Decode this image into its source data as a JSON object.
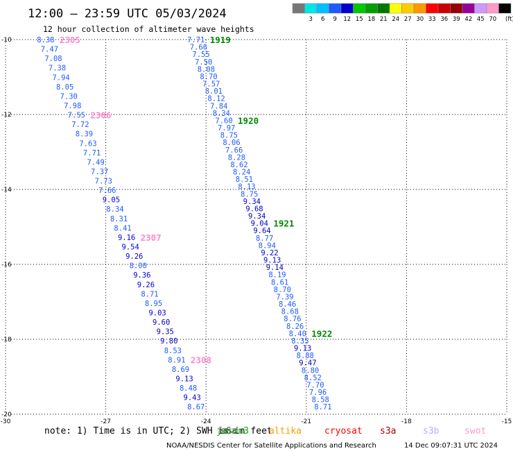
{
  "header": {
    "title": "12:00 — 23:59 UTC 05/03/2024",
    "subtitle": "12 hour collection of altimeter wave heights"
  },
  "color_scale": {
    "unit": "(ft)",
    "bins": [
      {
        "label": "",
        "color": "#777777"
      },
      {
        "label": "3",
        "color": "#00e6e6"
      },
      {
        "label": "6",
        "color": "#00bfff"
      },
      {
        "label": "9",
        "color": "#1e5aff"
      },
      {
        "label": "12",
        "color": "#0000cd"
      },
      {
        "label": "15",
        "color": "#00c800"
      },
      {
        "label": "18",
        "color": "#00a000"
      },
      {
        "label": "21",
        "color": "#007800"
      },
      {
        "label": "24",
        "color": "#ffff00"
      },
      {
        "label": "27",
        "color": "#ffcc00"
      },
      {
        "label": "30",
        "color": "#ff9900"
      },
      {
        "label": "33",
        "color": "#ff0000"
      },
      {
        "label": "36",
        "color": "#cc0000"
      },
      {
        "label": "39",
        "color": "#990000"
      },
      {
        "label": "42",
        "color": "#990099"
      },
      {
        "label": "45",
        "color": "#cc99ff"
      },
      {
        "label": "70",
        "color": "#ff99cc"
      },
      {
        "label": "",
        "color": "#000000"
      }
    ]
  },
  "chart_data": {
    "type": "scatter",
    "x_range": [
      -30,
      -15
    ],
    "y_range": [
      -20,
      -10
    ],
    "x_ticks": [
      -30,
      -27,
      -24,
      -21,
      -18,
      -15
    ],
    "y_ticks": [
      -10,
      -12,
      -14,
      -16,
      -18,
      -20
    ],
    "grid": true,
    "tracks": [
      {
        "name": "left-track",
        "x_start": -28.8,
        "x_end": -24.3,
        "y_start": -10,
        "y_end": -19.8,
        "values": [
          8.38,
          7.47,
          7.08,
          7.38,
          7.94,
          8.05,
          7.3,
          7.98,
          7.55,
          7.72,
          8.39,
          7.63,
          7.71,
          7.49,
          7.37,
          7.73,
          7.66,
          9.05,
          8.34,
          8.31,
          8.41,
          9.16,
          9.54,
          9.26,
          8.0,
          9.36,
          9.26,
          8.71,
          8.95,
          9.03,
          9.6,
          9.35,
          9.8,
          8.53,
          8.91,
          8.69,
          9.13,
          8.48,
          9.43,
          8.67
        ],
        "pass_labels": [
          {
            "label": "2305",
            "index": 0
          },
          {
            "label": "2306",
            "index": 8
          },
          {
            "label": "2307",
            "index": 21
          },
          {
            "label": "2308",
            "index": 34
          }
        ]
      },
      {
        "name": "right-track",
        "x_start": -24.3,
        "x_end": -20.5,
        "y_start": -10,
        "y_end": -19.8,
        "values": [
          7.71,
          7.66,
          7.55,
          7.5,
          8.08,
          8.7,
          7.57,
          8.01,
          8.12,
          7.84,
          8.34,
          7.6,
          7.97,
          8.75,
          8.06,
          7.66,
          8.28,
          8.62,
          8.24,
          8.51,
          8.13,
          8.75,
          9.34,
          9.68,
          9.34,
          9.04,
          9.64,
          8.77,
          8.94,
          9.22,
          9.13,
          9.14,
          8.19,
          8.61,
          8.7,
          7.39,
          8.46,
          8.68,
          8.76,
          8.26,
          8.4,
          8.35,
          9.13,
          8.88,
          9.47,
          8.8,
          8.52,
          7.7,
          7.96,
          8.58,
          8.71
        ],
        "pass_labels": [
          {
            "label": "1919",
            "index": 0
          },
          {
            "label": "1920",
            "index": 11
          },
          {
            "label": "1921",
            "index": 25
          },
          {
            "label": "1922",
            "index": 40
          }
        ]
      }
    ],
    "satellites": [
      {
        "name": "jason3",
        "color": "#00aa00"
      },
      {
        "name": "altika",
        "color": "#ff9900"
      },
      {
        "name": "cryosat",
        "color": "#ff0000"
      },
      {
        "name": "s3a",
        "color": "#aa0000"
      },
      {
        "name": "s3b",
        "color": "#bbaaff"
      },
      {
        "name": "swot",
        "color": "#ff99cc"
      }
    ],
    "satellite_overlay_text": "jason3",
    "sentinel6_text": "s6a"
  },
  "footer": {
    "note": "note: 1) Time is in UTC; 2) SWH is in feet",
    "credit": "NOAA/NESDIS Center for Satellite Applications and Research",
    "timestamp": "14 Dec 09:07:31 UTC 2024"
  }
}
